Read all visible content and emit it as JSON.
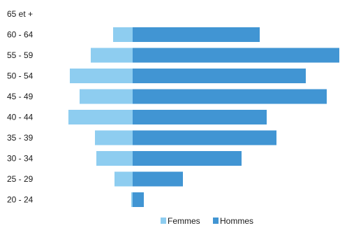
{
  "chart_data": {
    "type": "bar",
    "orientation": "horizontal",
    "subtype": "population-pyramid",
    "categories": [
      "65 et +",
      "60 - 64",
      "55 - 59",
      "50 - 54",
      "45 - 49",
      "40 - 44",
      "35 - 39",
      "30 - 34",
      "25 - 29",
      "20 - 24"
    ],
    "series": [
      {
        "name": "Femmes",
        "color": "#8ECDF0",
        "values": [
          0,
          7,
          15,
          22.5,
          19,
          23,
          13.5,
          13,
          6.5,
          0.5
        ]
      },
      {
        "name": "Hommes",
        "color": "#4195D3",
        "values": [
          0,
          45.5,
          74,
          62,
          69.5,
          48,
          51.5,
          39,
          18,
          4
        ]
      }
    ],
    "xlim": [
      -30,
      75
    ],
    "grid": false,
    "legend_position": "bottom"
  }
}
